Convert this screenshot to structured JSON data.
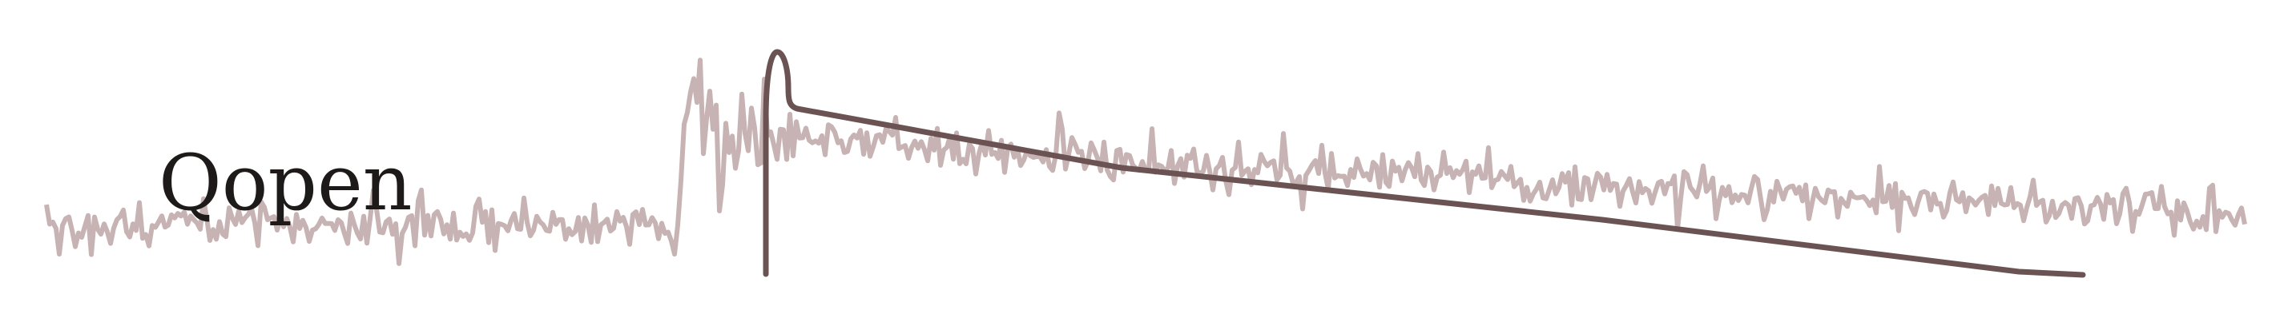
{
  "logo": {
    "name": "Qopen",
    "colors": {
      "noise_trace": "#c7b3b3",
      "model_curve": "#6b5353",
      "text": "#1f1a1a",
      "background": "#ffffff"
    }
  }
}
